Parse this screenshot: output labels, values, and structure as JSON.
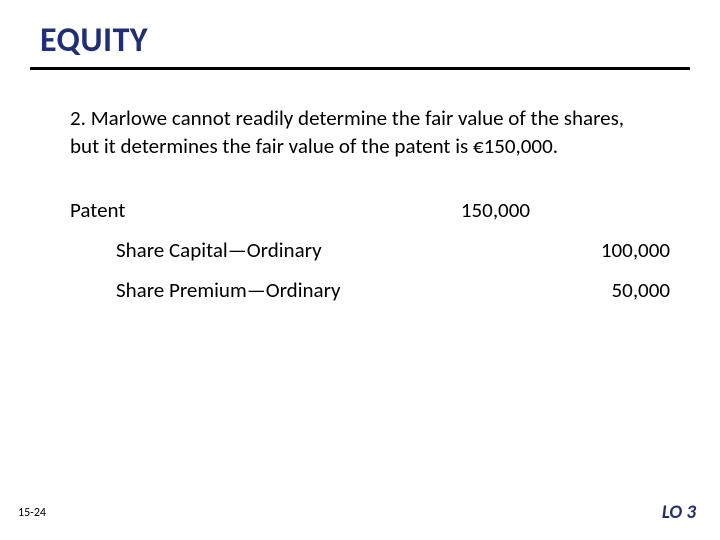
{
  "title": "EQUITY",
  "paragraph_prefix": "2.",
  "paragraph_text": "Marlowe cannot readily determine the fair value of the shares, but it determines the fair value of the patent is €150,000.",
  "journal": {
    "rows": [
      {
        "label": "Patent",
        "debit": "150,000",
        "credit": "",
        "indent": false
      },
      {
        "label": "Share Capital—Ordinary",
        "debit": "",
        "credit": "100,000",
        "indent": true
      },
      {
        "label": "Share Premium—Ordinary",
        "debit": "",
        "credit": "50,000",
        "indent": true
      }
    ]
  },
  "slide_number": "15-24",
  "learning_objective": "LO 3",
  "colors": {
    "title_color": "#1f2e77",
    "rule_color": "#000000",
    "text_color": "#000000",
    "background_color": "#ffffff"
  },
  "typography": {
    "title_fontsize": 34,
    "body_fontsize": 21,
    "slide_number_fontsize": 12,
    "lo_fontsize": 19
  }
}
